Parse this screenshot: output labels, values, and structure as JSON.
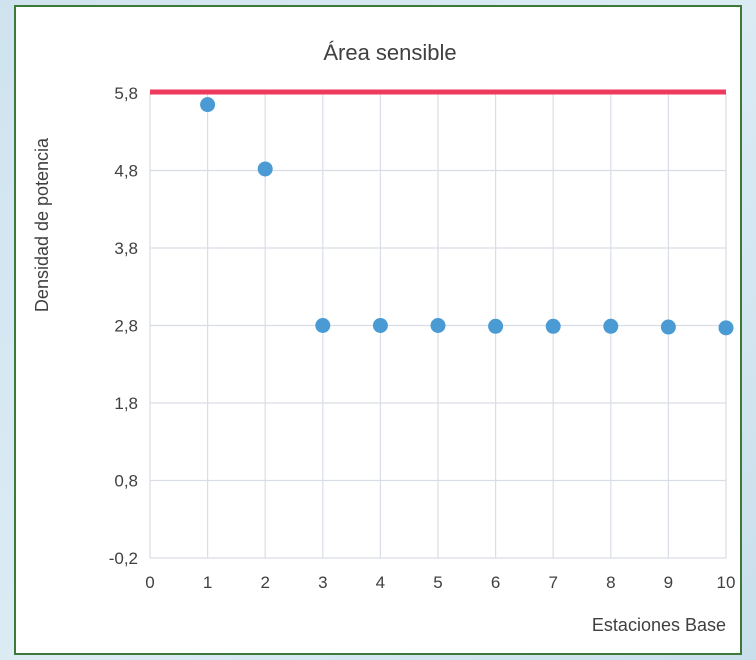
{
  "chart_data": {
    "type": "scatter",
    "title": "Área sensible",
    "xlabel": "Estaciones Base",
    "ylabel": "Densidad de potencia",
    "xlim": [
      0,
      10
    ],
    "ylim": [
      -0.2,
      5.8
    ],
    "x_ticks": [
      "0",
      "1",
      "2",
      "3",
      "4",
      "5",
      "6",
      "7",
      "8",
      "9",
      "10"
    ],
    "y_ticks": [
      "-0,2",
      "0,8",
      "1,8",
      "2,8",
      "3,8",
      "4,8",
      "5,8"
    ],
    "grid": true,
    "series": [
      {
        "x": [
          1,
          2,
          3,
          4,
          5,
          6,
          7,
          8,
          9,
          10
        ],
        "y": [
          5.65,
          4.82,
          2.8,
          2.8,
          2.8,
          2.79,
          2.79,
          2.79,
          2.78,
          2.77
        ],
        "color": "#4a9bd4"
      }
    ],
    "reference_line": {
      "y": 5.8,
      "color": "#ee3a5d"
    }
  }
}
